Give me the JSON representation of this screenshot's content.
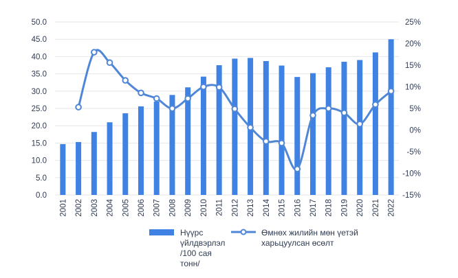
{
  "chart_data": {
    "type": "bar+line",
    "title": "",
    "categories": [
      "2001",
      "2002",
      "2003",
      "2004",
      "2005",
      "2006",
      "2007",
      "2008",
      "2009",
      "2010",
      "2011",
      "2012",
      "2013",
      "2014",
      "2015",
      "2016",
      "2017",
      "2018",
      "2019",
      "2020",
      "2021",
      "2022"
    ],
    "series": [
      {
        "name": "Нүүрс үйлдвэрлэл /100 сая тонн/",
        "type": "bar",
        "axis": "left",
        "values": [
          14.7,
          15.3,
          18.2,
          21.0,
          23.6,
          25.6,
          27.0,
          28.9,
          31.1,
          34.2,
          37.5,
          39.4,
          39.6,
          38.7,
          37.4,
          34.1,
          35.2,
          36.9,
          38.5,
          39.0,
          41.2,
          45.0
        ]
      },
      {
        "name": "Өмнөх жилийн мөн үетэй харьцуулсан өсөлт",
        "type": "line",
        "axis": "right",
        "values": [
          null,
          5.3,
          18.0,
          15.6,
          11.5,
          8.6,
          7.3,
          5.0,
          7.3,
          10.0,
          9.9,
          4.9,
          0.6,
          -2.6,
          -3.0,
          -9.0,
          3.4,
          5.0,
          4.0,
          1.4,
          5.9,
          9.0
        ]
      }
    ],
    "y_left": {
      "min": 0,
      "max": 50,
      "step": 5,
      "tick_labels": [
        "0.0",
        "5.0",
        "10.0",
        "15.0",
        "20.0",
        "25.0",
        "30.0",
        "35.0",
        "40.0",
        "45.0",
        "50.0"
      ]
    },
    "y_right": {
      "min": -15,
      "max": 25,
      "step": 5,
      "tick_labels": [
        "-15%",
        "-10%",
        "-5%",
        "0%",
        "5%",
        "10%",
        "15%",
        "20%",
        "25%"
      ]
    },
    "legend": {
      "position": "bottom",
      "bar_label_lines": [
        "Нүүрс",
        "үйлдвэрлэл",
        "/100 сая",
        "тонн/"
      ],
      "line_label_lines": [
        "Өмнөх жилийн мөн үетэй",
        "харьцуулсан өсөлт"
      ]
    },
    "colors": {
      "bar": "#3f82e3",
      "line": "#4f86d6",
      "axis_text": "#2f3b52"
    }
  }
}
